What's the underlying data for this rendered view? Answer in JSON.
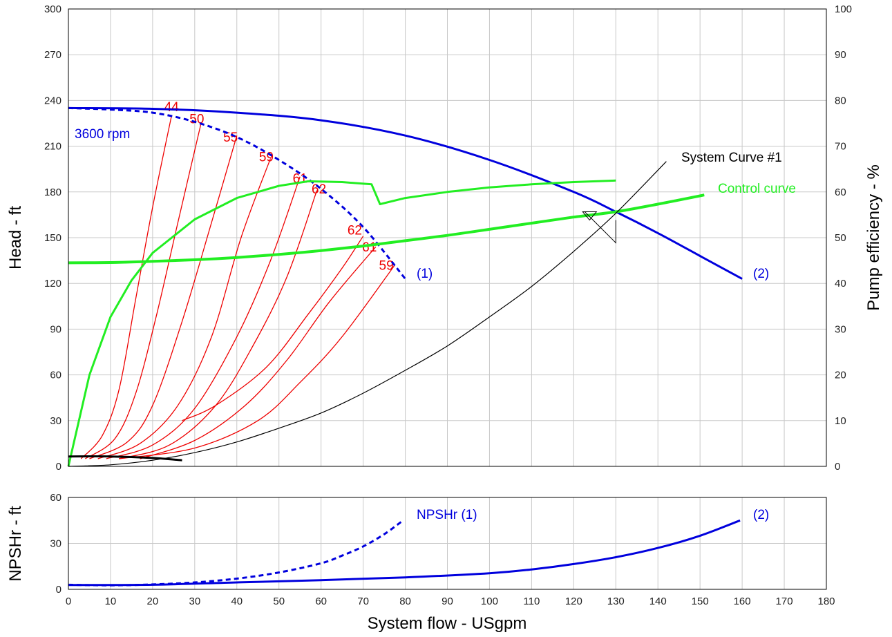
{
  "chart_data": {
    "type": "line",
    "colors": {
      "head_curve": "#0000dd",
      "efficiency": "#22ee22",
      "iso_efficiency": "#ee0000",
      "system": "#000000",
      "npsh": "#0000dd"
    },
    "x_axis": {
      "label": "System flow - USgpm",
      "range": [
        0,
        180
      ],
      "ticks": [
        0,
        10,
        20,
        30,
        40,
        50,
        60,
        70,
        80,
        90,
        100,
        110,
        120,
        130,
        140,
        150,
        160,
        170,
        180
      ]
    },
    "main_panel": {
      "y_left": {
        "label": "Head - ft",
        "range": [
          0,
          300
        ],
        "ticks": [
          0,
          30,
          60,
          90,
          120,
          150,
          180,
          210,
          240,
          270,
          300
        ]
      },
      "y_right": {
        "label": "Pump efficiency - %",
        "range": [
          0,
          100
        ],
        "ticks": [
          0,
          10,
          20,
          30,
          40,
          50,
          60,
          70,
          80,
          90,
          100
        ]
      },
      "grid": true,
      "series": [
        {
          "id": "head-2",
          "axis": "left",
          "dash": false,
          "points": [
            [
              0,
              235
            ],
            [
              20,
              234.5
            ],
            [
              40,
              232
            ],
            [
              60,
              227
            ],
            [
              80,
              217
            ],
            [
              100,
              201
            ],
            [
              120,
              180
            ],
            [
              130,
              167
            ],
            [
              140,
              153
            ],
            [
              150,
              138
            ],
            [
              160,
              123
            ]
          ]
        },
        {
          "id": "head-1",
          "axis": "left",
          "dash": true,
          "points": [
            [
              0,
              235
            ],
            [
              10,
              234
            ],
            [
              20,
              232
            ],
            [
              30,
              226
            ],
            [
              40,
              216
            ],
            [
              50,
              201
            ],
            [
              60,
              182
            ],
            [
              70,
              157
            ],
            [
              80,
              123
            ]
          ]
        },
        {
          "id": "efficiency-main",
          "axis": "left",
          "dash": false,
          "points": [
            [
              0,
              0
            ],
            [
              5,
              60
            ],
            [
              10,
              98
            ],
            [
              15,
              122
            ],
            [
              20,
              140
            ],
            [
              30,
              162
            ],
            [
              40,
              176
            ],
            [
              50,
              184
            ],
            [
              57,
              187
            ],
            [
              65,
              186.5
            ],
            [
              72,
              185
            ],
            [
              74,
              172
            ],
            [
              80,
              176
            ],
            [
              90,
              180
            ],
            [
              100,
              183
            ],
            [
              110,
              185
            ],
            [
              120,
              186.5
            ],
            [
              130,
              187.5
            ]
          ]
        },
        {
          "id": "control-curve",
          "axis": "left",
          "dash": false,
          "bold": true,
          "points": [
            [
              0,
              133.5
            ],
            [
              10,
              133.7
            ],
            [
              20,
              134.5
            ],
            [
              30,
              135.5
            ],
            [
              40,
              137
            ],
            [
              50,
              139
            ],
            [
              60,
              141.5
            ],
            [
              70,
              144.5
            ],
            [
              80,
              148
            ],
            [
              90,
              151.5
            ],
            [
              100,
              155.5
            ],
            [
              110,
              159.5
            ],
            [
              120,
              163.5
            ],
            [
              130,
              167
            ],
            [
              140,
              172
            ],
            [
              151,
              178
            ]
          ]
        },
        {
          "id": "system-curve",
          "axis": "left",
          "dash": false,
          "points": [
            [
              0,
              0
            ],
            [
              10,
              1
            ],
            [
              20,
              4
            ],
            [
              30,
              9
            ],
            [
              40,
              16
            ],
            [
              50,
              25
            ],
            [
              60,
              35
            ],
            [
              70,
              48
            ],
            [
              80,
              63
            ],
            [
              90,
              79
            ],
            [
              100,
              98
            ],
            [
              110,
              118
            ],
            [
              120,
              141
            ],
            [
              130,
              166
            ],
            [
              142,
              200
            ]
          ]
        },
        {
          "id": "shutoff-curve",
          "axis": "left",
          "dash": false,
          "bold": true,
          "points": [
            [
              0,
              6.5
            ],
            [
              10,
              6.5
            ],
            [
              20,
              5.5
            ],
            [
              27,
              4
            ]
          ]
        }
      ],
      "iso_efficiency_curves": [
        {
          "label": "44",
          "label_at": [
            24.5,
            233
          ],
          "points": [
            [
              3,
              5
            ],
            [
              8,
              20
            ],
            [
              12,
              50
            ],
            [
              16,
              110
            ],
            [
              20,
              170
            ],
            [
              24.5,
              230
            ]
          ]
        },
        {
          "label": "50",
          "label_at": [
            30.5,
            225
          ],
          "points": [
            [
              4,
              5
            ],
            [
              11,
              18
            ],
            [
              16,
              48
            ],
            [
              21,
              100
            ],
            [
              26,
              160
            ],
            [
              31.5,
              225
            ]
          ]
        },
        {
          "label": "55",
          "label_at": [
            38.5,
            213
          ],
          "points": [
            [
              5,
              5
            ],
            [
              14,
              16
            ],
            [
              20,
              40
            ],
            [
              27,
              95
            ],
            [
              34,
              160
            ],
            [
              40,
              217
            ]
          ]
        },
        {
          "label": "59",
          "label_at": [
            47,
            200
          ],
          "points": [
            [
              7,
              5
            ],
            [
              17,
              15
            ],
            [
              26,
              40
            ],
            [
              34,
              85
            ],
            [
              41,
              150
            ],
            [
              48,
              202
            ]
          ]
        },
        {
          "label": "61",
          "label_at": [
            55,
            186
          ],
          "points": [
            [
              9,
              5
            ],
            [
              20,
              14
            ],
            [
              30,
              38
            ],
            [
              40,
              85
            ],
            [
              48,
              135
            ],
            [
              55,
              190
            ]
          ]
        },
        {
          "label": "62",
          "label_at": [
            59.5,
            179
          ],
          "points": [
            [
              12,
              5
            ],
            [
              24,
              14
            ],
            [
              35,
              40
            ],
            [
              44,
              80
            ],
            [
              52,
              125
            ],
            [
              59,
              181
            ]
          ]
        },
        {
          "label": "62",
          "label_at": [
            68,
            152
          ],
          "points": [
            [
              27,
              30
            ],
            [
              35,
              40
            ],
            [
              47,
              65
            ],
            [
              57,
              100
            ],
            [
              65,
              130
            ],
            [
              70,
              151
            ]
          ]
        },
        {
          "label": "61",
          "label_at": [
            71.5,
            141
          ],
          "points": [
            [
              17,
              5
            ],
            [
              30,
              17
            ],
            [
              42,
              40
            ],
            [
              52,
              70
            ],
            [
              62,
              108
            ],
            [
              73,
              144
            ]
          ]
        },
        {
          "label": "59",
          "label_at": [
            75.5,
            129
          ],
          "points": [
            [
              12,
              5
            ],
            [
              30,
              12
            ],
            [
              45,
              30
            ],
            [
              55,
              55
            ],
            [
              65,
              85
            ],
            [
              77.5,
              132
            ]
          ]
        }
      ],
      "duty_point": {
        "x": 130,
        "y": 167
      },
      "labels": {
        "speed": "3600 rpm",
        "impeller_1": "(1)",
        "impeller_2": "(2)",
        "system_curve": "System Curve #1",
        "control_curve": "Control curve"
      }
    },
    "npsh_panel": {
      "y_left": {
        "label": "NPSHr - ft",
        "range": [
          0,
          60
        ],
        "ticks": [
          0,
          30,
          60
        ]
      },
      "grid": true,
      "series": [
        {
          "id": "npsh-1",
          "dash": true,
          "points": [
            [
              0,
              3
            ],
            [
              10,
              2.6
            ],
            [
              20,
              3.2
            ],
            [
              30,
              4.5
            ],
            [
              40,
              7
            ],
            [
              50,
              11
            ],
            [
              60,
              17
            ],
            [
              65,
              22
            ],
            [
              70,
              28
            ],
            [
              75,
              36
            ],
            [
              79.5,
              45
            ]
          ]
        },
        {
          "id": "npsh-2",
          "dash": false,
          "points": [
            [
              0,
              2.8
            ],
            [
              20,
              3
            ],
            [
              40,
              4.5
            ],
            [
              60,
              6
            ],
            [
              80,
              7.8
            ],
            [
              100,
              10.5
            ],
            [
              110,
              13
            ],
            [
              120,
              16.5
            ],
            [
              130,
              21
            ],
            [
              140,
              27
            ],
            [
              150,
              35
            ],
            [
              159.5,
              45
            ]
          ]
        }
      ],
      "labels": {
        "npsh_1": "NPSHr (1)",
        "npsh_2": "(2)"
      }
    }
  }
}
